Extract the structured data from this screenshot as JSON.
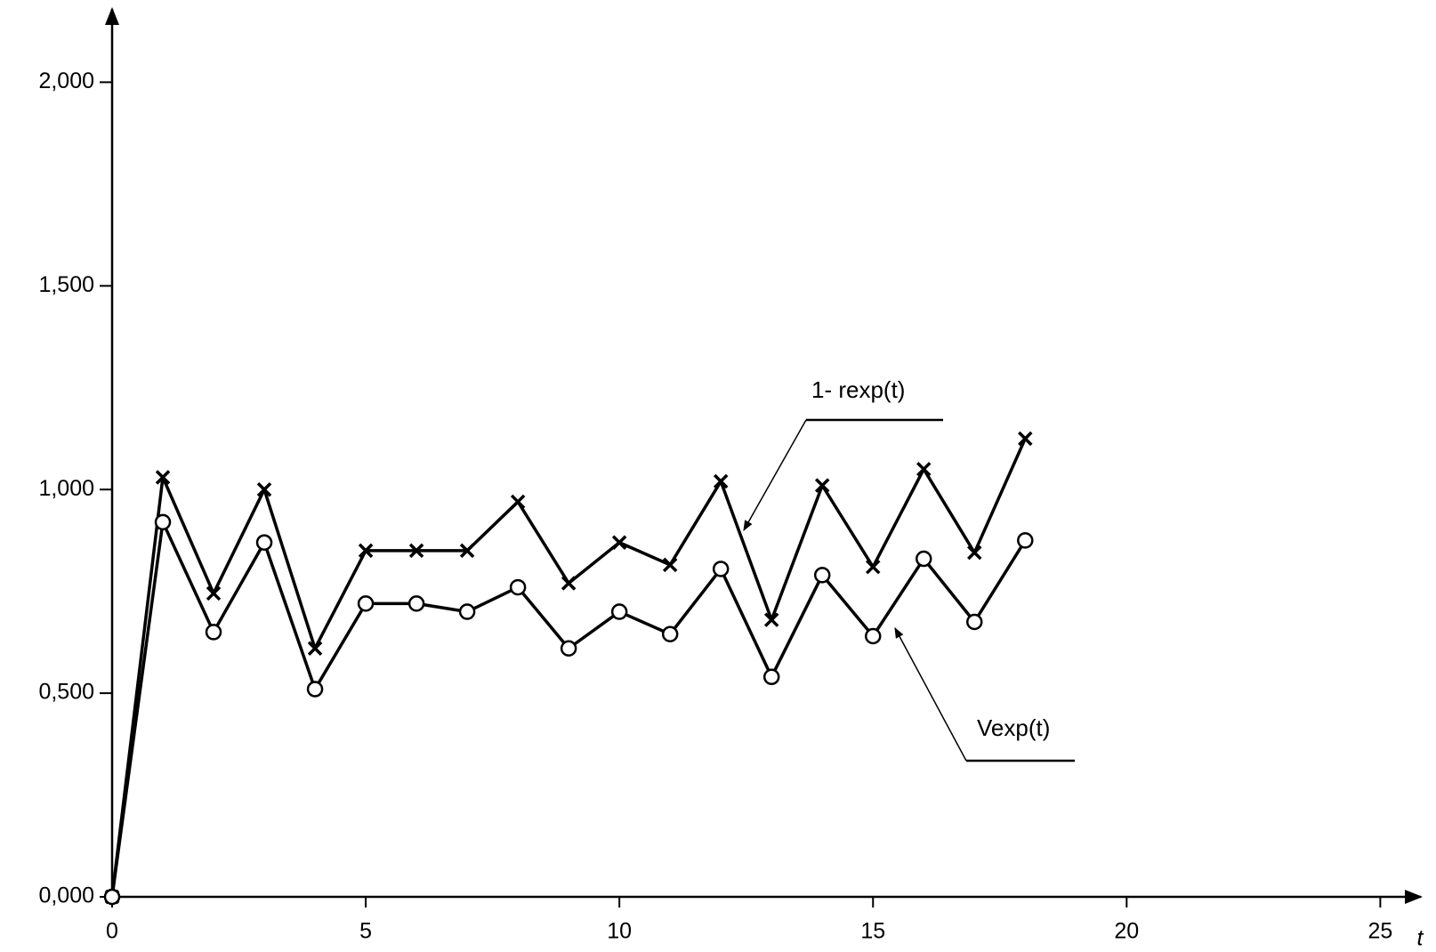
{
  "chart_data": {
    "type": "line",
    "x_label": "t",
    "x": [
      0,
      1,
      2,
      3,
      4,
      5,
      6,
      7,
      8,
      9,
      10,
      11,
      12,
      13,
      14,
      15,
      16,
      17,
      18
    ],
    "series": [
      {
        "name": "1- rexp(t)",
        "color": "#000000",
        "marker": "x",
        "values": [
          0,
          1.03,
          0.745,
          1.0,
          0.61,
          0.85,
          0.85,
          0.85,
          0.97,
          0.77,
          0.87,
          0.815,
          1.02,
          0.68,
          1.01,
          0.81,
          1.05,
          0.845,
          1.125
        ]
      },
      {
        "name": "Vexp(t)",
        "color": "#000000",
        "marker": "circle",
        "values": [
          0,
          0.92,
          0.65,
          0.87,
          0.51,
          0.72,
          0.72,
          0.7,
          0.76,
          0.61,
          0.7,
          0.645,
          0.805,
          0.54,
          0.79,
          0.64,
          0.83,
          0.675,
          0.875
        ]
      }
    ],
    "xlim": [
      0,
      25.8
    ],
    "ylim": [
      0,
      2.18
    ],
    "xticks": [
      0,
      5,
      10,
      15,
      20,
      25
    ],
    "yticks": [
      {
        "value": 0,
        "label": "0,000"
      },
      {
        "value": 0.5,
        "label": "0,500"
      },
      {
        "value": 1.0,
        "label": "1,000"
      },
      {
        "value": 1.5,
        "label": "1,500"
      },
      {
        "value": 2.0,
        "label": "2,000"
      }
    ],
    "grid": false
  }
}
